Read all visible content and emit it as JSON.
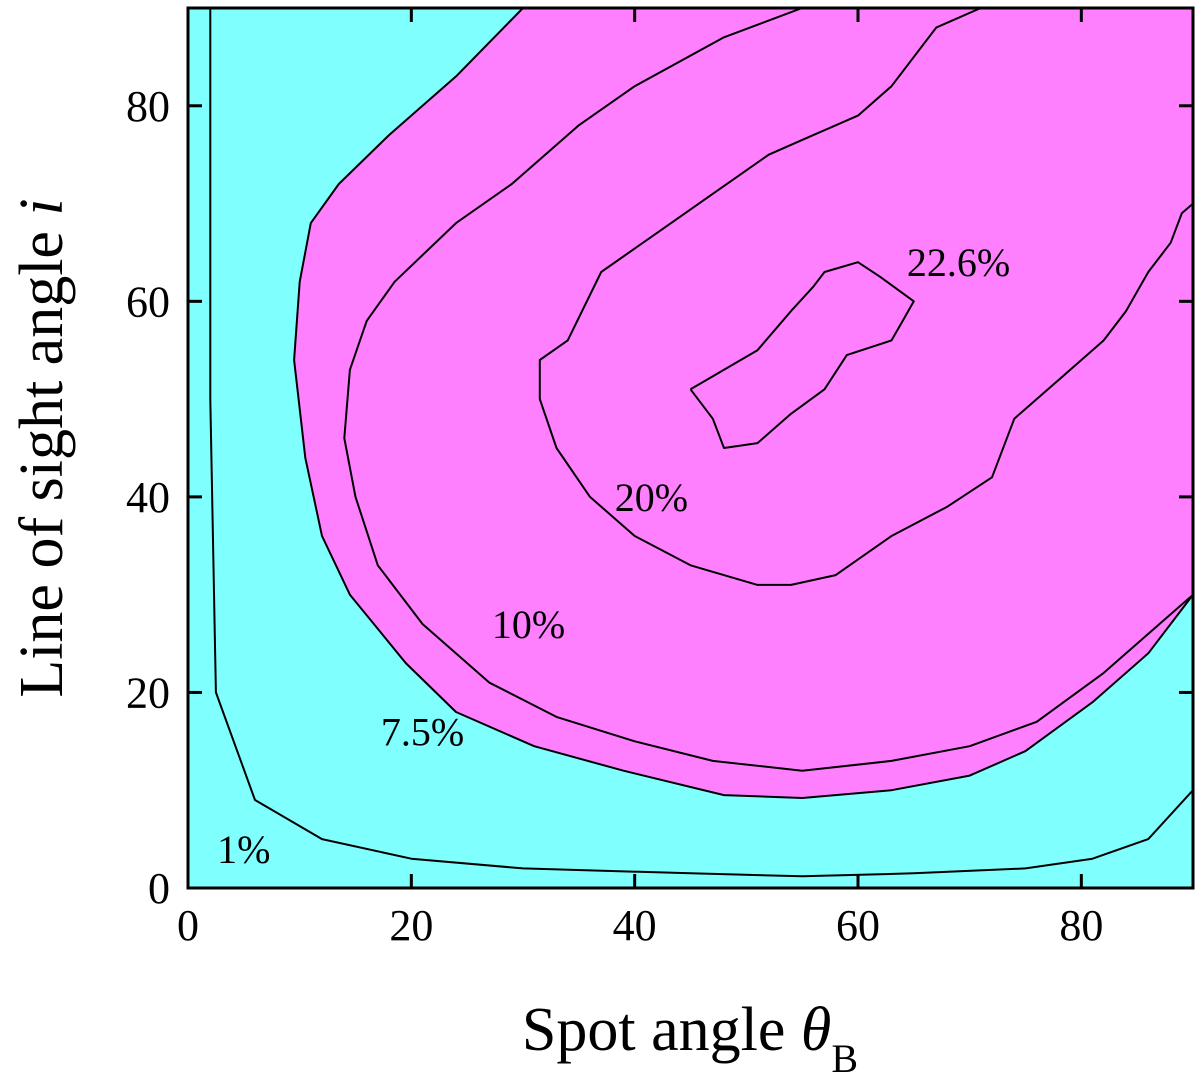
{
  "chart_data": {
    "type": "contour",
    "xlabel": "Spot angle θB",
    "xlabel_parts": {
      "text": "Spot angle ",
      "symbol": "θ",
      "subscript": "B"
    },
    "ylabel": "Line of sight angle i",
    "ylabel_parts": {
      "text": "Line of sight angle ",
      "symbol": "i"
    },
    "xlim": [
      0,
      90
    ],
    "ylim": [
      0,
      90
    ],
    "x_ticks": [
      0,
      20,
      40,
      60,
      80
    ],
    "y_ticks": [
      0,
      20,
      40,
      60,
      80
    ],
    "fill_colors": {
      "low": "#80FFFF",
      "high": "#FF80FF"
    },
    "regions": [
      {
        "fill": "high",
        "bounded_by": [
          "7.5%"
        ],
        "description": "values above 7.5%"
      }
    ],
    "contours": [
      {
        "level": "1%",
        "points": [
          [
            2,
            90
          ],
          [
            2,
            80
          ],
          [
            2,
            50
          ],
          [
            2.5,
            20
          ],
          [
            6,
            9
          ],
          [
            12,
            5
          ],
          [
            20,
            3
          ],
          [
            30,
            2
          ],
          [
            45,
            1.5
          ],
          [
            55,
            1.2
          ],
          [
            65,
            1.5
          ],
          [
            75,
            2
          ],
          [
            81,
            3
          ],
          [
            86,
            5
          ],
          [
            90,
            10
          ]
        ]
      },
      {
        "level": "7.5%",
        "points": [
          [
            30,
            90
          ],
          [
            24,
            83
          ],
          [
            18,
            77
          ],
          [
            13.5,
            72
          ],
          [
            11,
            68
          ],
          [
            10,
            62
          ],
          [
            9.5,
            54
          ],
          [
            10.5,
            44
          ],
          [
            12,
            36
          ],
          [
            14.5,
            30
          ],
          [
            19.5,
            23
          ],
          [
            24,
            18
          ],
          [
            31,
            14.5
          ],
          [
            39,
            12
          ],
          [
            48,
            9.5
          ],
          [
            55,
            9.2
          ],
          [
            63,
            10
          ],
          [
            70,
            11.5
          ],
          [
            75,
            14
          ],
          [
            81,
            19
          ],
          [
            86,
            24
          ],
          [
            90,
            30
          ]
        ]
      },
      {
        "level": "10%",
        "points": [
          [
            55,
            90
          ],
          [
            48,
            87
          ],
          [
            40,
            82
          ],
          [
            35,
            78
          ],
          [
            29,
            72
          ],
          [
            24,
            68
          ],
          [
            18.5,
            62
          ],
          [
            16,
            58
          ],
          [
            14.5,
            53
          ],
          [
            14,
            46
          ],
          [
            15,
            40
          ],
          [
            17,
            33
          ],
          [
            21,
            27
          ],
          [
            27,
            21
          ],
          [
            33,
            17.5
          ],
          [
            40,
            15
          ],
          [
            47,
            13
          ],
          [
            55,
            12
          ],
          [
            63,
            13
          ],
          [
            70,
            14.5
          ],
          [
            76,
            17
          ],
          [
            82,
            22
          ],
          [
            87,
            27
          ],
          [
            90,
            30
          ]
        ]
      },
      {
        "level": "20%",
        "points": [
          [
            71,
            90
          ],
          [
            67,
            88
          ],
          [
            63,
            82
          ],
          [
            60,
            79
          ],
          [
            56,
            77
          ],
          [
            52,
            75
          ],
          [
            47,
            71
          ],
          [
            42,
            67
          ],
          [
            37,
            63
          ],
          [
            34,
            56
          ],
          [
            31.5,
            54
          ],
          [
            31.5,
            50
          ],
          [
            33,
            45
          ],
          [
            36,
            40
          ],
          [
            40,
            36
          ],
          [
            45,
            33
          ],
          [
            51,
            31
          ],
          [
            54,
            31
          ],
          [
            58,
            32
          ],
          [
            63,
            36
          ],
          [
            68,
            39
          ],
          [
            72,
            42
          ],
          [
            74,
            48
          ],
          [
            78,
            52
          ],
          [
            82,
            56
          ],
          [
            84,
            59
          ],
          [
            86,
            63
          ],
          [
            88,
            66
          ],
          [
            89,
            69
          ],
          [
            90,
            70
          ]
        ]
      },
      {
        "level": "22.6%",
        "points": [
          [
            45,
            51
          ],
          [
            47,
            48
          ],
          [
            48,
            45
          ],
          [
            51,
            45.5
          ],
          [
            54,
            48.5
          ],
          [
            57,
            51
          ],
          [
            59,
            54.5
          ],
          [
            63,
            56
          ],
          [
            64,
            58
          ],
          [
            65,
            60
          ],
          [
            62,
            62.5
          ],
          [
            60,
            64
          ],
          [
            57,
            63
          ],
          [
            56,
            61.5
          ],
          [
            54,
            59
          ],
          [
            51,
            55
          ],
          [
            48,
            53
          ],
          [
            45,
            51
          ]
        ]
      }
    ],
    "contour_labels": [
      {
        "text": "1%",
        "x": 5,
        "y": 4
      },
      {
        "text": "7.5%",
        "x": 21,
        "y": 16
      },
      {
        "text": "10%",
        "x": 30.5,
        "y": 27
      },
      {
        "text": "20%",
        "x": 41.5,
        "y": 40
      },
      {
        "text": "22.6%",
        "x": 69,
        "y": 64
      }
    ]
  }
}
